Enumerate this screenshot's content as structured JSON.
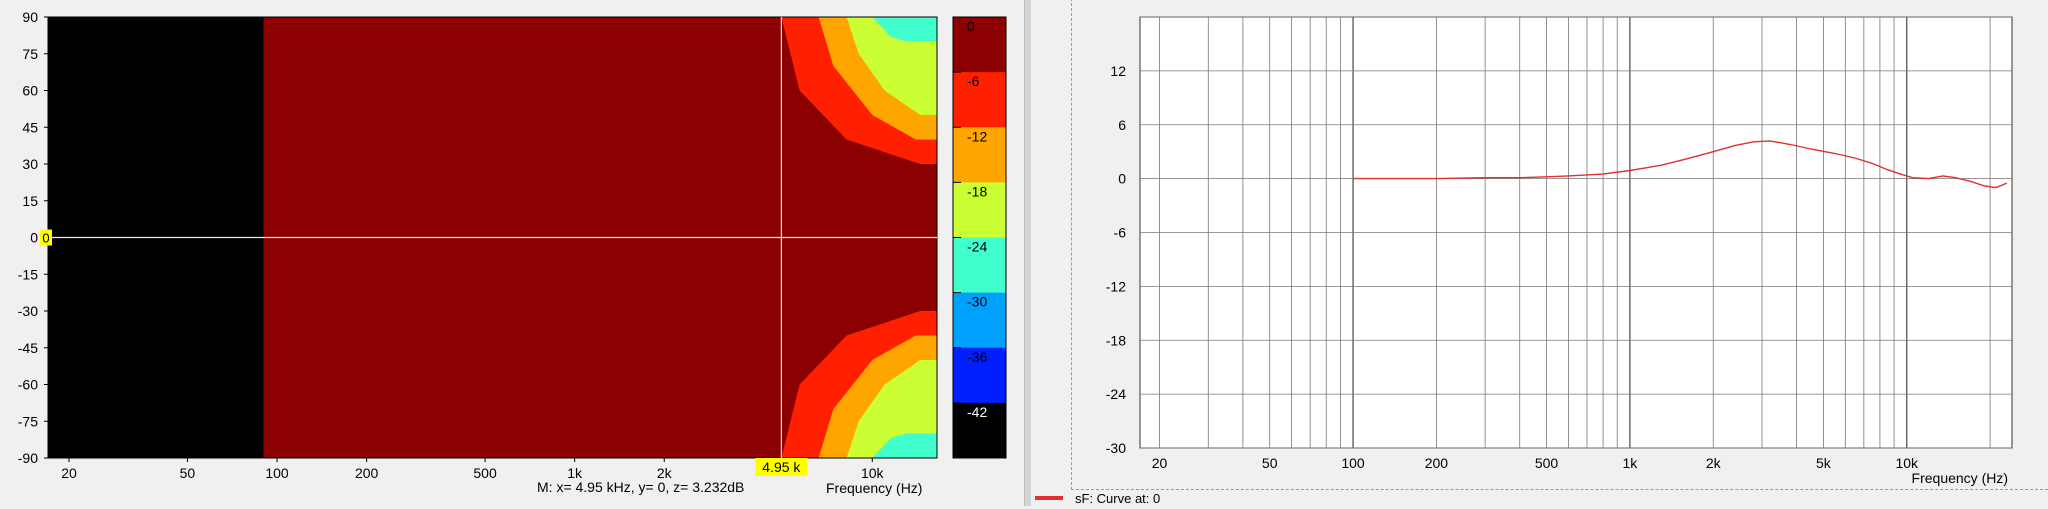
{
  "left": {
    "readout": "M:  x= 4.95 kHz,  y= 0, z= 3.232dB",
    "marker_x_label": "4.95 k",
    "marker_y_label": "0"
  },
  "legend": {
    "text": "sF: Curve at: 0",
    "color": "#e03030"
  },
  "chart_data": [
    {
      "type": "heatmap",
      "title": "",
      "xlabel": "Frequency  (Hz)",
      "ylabel": "",
      "x_scale": "log",
      "xlim": [
        17,
        16500
      ],
      "ylim": [
        -90,
        90
      ],
      "x_ticks": [
        {
          "value": 20,
          "label": "20"
        },
        {
          "value": 50,
          "label": "50"
        },
        {
          "value": 100,
          "label": "100"
        },
        {
          "value": 200,
          "label": "200"
        },
        {
          "value": 500,
          "label": "500"
        },
        {
          "value": 1000,
          "label": "1k"
        },
        {
          "value": 2000,
          "label": "2k"
        },
        {
          "value": 10000,
          "label": "10k"
        }
      ],
      "y_ticks": [
        90,
        75,
        60,
        45,
        30,
        15,
        0,
        -15,
        -30,
        -45,
        -60,
        -75,
        -90
      ],
      "colorbar": {
        "ticks": [
          "0",
          "-6",
          "-12",
          "-18",
          "-24",
          "-30",
          "-36",
          "-42"
        ],
        "colors": [
          "#8b0000",
          "#ff2000",
          "#ffa500",
          "#ccff33",
          "#40ffcc",
          "#00a0ff",
          "#0020ff",
          "#000000"
        ]
      },
      "no_data_below_hz": 90,
      "marker": {
        "x": 4950,
        "y": 0,
        "z": 3.232
      },
      "contours": [
        {
          "level": "-6",
          "color": "#ff2000",
          "min_angle_freq": [
            [
              90,
              4950
            ],
            [
              60,
              5700
            ],
            [
              40,
              8200
            ],
            [
              30,
              14500
            ]
          ]
        },
        {
          "level": "-12",
          "color": "#ffa500",
          "min_angle_freq": [
            [
              90,
              6600
            ],
            [
              70,
              7400
            ],
            [
              50,
              10000
            ],
            [
              40,
              14000
            ]
          ]
        },
        {
          "level": "-18",
          "color": "#ccff33",
          "min_angle_freq": [
            [
              90,
              8200
            ],
            [
              75,
              9000
            ],
            [
              60,
              11000
            ],
            [
              50,
              14500
            ]
          ]
        },
        {
          "level": "-24",
          "color": "#40ffcc",
          "min_angle_freq": [
            [
              90,
              10000
            ],
            [
              82,
              11500
            ],
            [
              80,
              13000
            ]
          ]
        }
      ]
    },
    {
      "type": "line",
      "title": "",
      "xlabel": "Frequency  (Hz)",
      "ylabel": "",
      "x_scale": "log",
      "xlim": [
        17,
        24000
      ],
      "ylim": [
        -30,
        18
      ],
      "grid": true,
      "x_ticks": [
        {
          "value": 20,
          "label": "20"
        },
        {
          "value": 50,
          "label": "50"
        },
        {
          "value": 100,
          "label": "100"
        },
        {
          "value": 200,
          "label": "200"
        },
        {
          "value": 500,
          "label": "500"
        },
        {
          "value": 1000,
          "label": "1k"
        },
        {
          "value": 2000,
          "label": "2k"
        },
        {
          "value": 5000,
          "label": "5k"
        },
        {
          "value": 10000,
          "label": "10k"
        }
      ],
      "y_ticks": [
        12,
        6,
        0,
        -6,
        -12,
        -18,
        -24,
        -30
      ],
      "series": [
        {
          "color": "#e03030",
          "x": [
            100,
            200,
            300,
            400,
            500,
            600,
            800,
            1000,
            1300,
            1600,
            2000,
            2400,
            2800,
            3200,
            3800,
            4500,
            5500,
            6500,
            7500,
            8500,
            9500,
            10500,
            12000,
            13500,
            15000,
            17000,
            19000,
            21000,
            23000
          ],
          "y": [
            0.0,
            0.0,
            0.1,
            0.1,
            0.2,
            0.3,
            0.5,
            0.9,
            1.5,
            2.2,
            3.0,
            3.7,
            4.1,
            4.2,
            3.8,
            3.3,
            2.8,
            2.3,
            1.7,
            1.0,
            0.5,
            0.1,
            0.0,
            0.3,
            0.1,
            -0.3,
            -0.8,
            -1.0,
            -0.5
          ]
        }
      ]
    }
  ]
}
